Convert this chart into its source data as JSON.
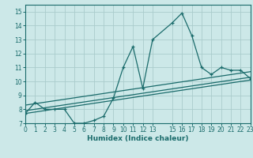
{
  "xlabel": "Humidex (Indice chaleur)",
  "bg_color": "#cce8e8",
  "grid_color": "#aacccc",
  "line_color": "#1a6b6b",
  "xlim": [
    0,
    23
  ],
  "ylim": [
    7,
    15.5
  ],
  "yticks": [
    7,
    8,
    9,
    10,
    11,
    12,
    13,
    14,
    15
  ],
  "xticks": [
    0,
    1,
    2,
    3,
    4,
    5,
    6,
    7,
    8,
    9,
    10,
    11,
    12,
    13,
    15,
    16,
    17,
    18,
    19,
    20,
    21,
    22,
    23
  ],
  "line1_x": [
    0,
    1,
    2,
    3,
    4,
    5,
    6,
    7,
    8,
    9,
    10,
    11,
    12,
    13,
    15,
    16,
    17,
    18,
    19,
    20,
    21,
    22,
    23
  ],
  "line1_y": [
    7.7,
    8.5,
    8.0,
    8.0,
    8.0,
    7.0,
    7.0,
    7.2,
    7.5,
    8.8,
    11.0,
    12.5,
    9.5,
    13.0,
    14.2,
    14.9,
    13.3,
    11.0,
    10.5,
    11.0,
    10.8,
    10.8,
    10.2
  ],
  "line2_x": [
    0,
    23
  ],
  "line2_y": [
    7.7,
    10.1
  ],
  "line3_x": [
    0,
    23
  ],
  "line3_y": [
    7.9,
    10.3
  ],
  "line4_x": [
    0,
    23
  ],
  "line4_y": [
    8.3,
    10.7
  ]
}
